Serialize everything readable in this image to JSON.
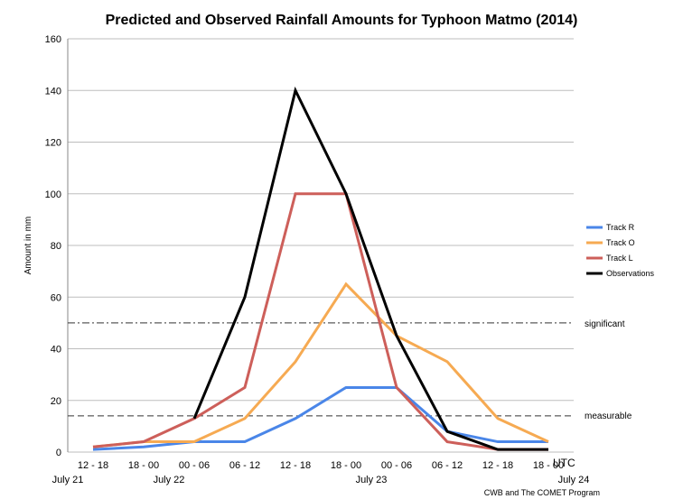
{
  "chart_data": {
    "type": "line",
    "title": "Predicted and Observed Rainfall Amounts for Typhoon Matmo (2014)",
    "ylabel": "Amount in mm",
    "xlabel": "UTC",
    "ylim": [
      0,
      160
    ],
    "yticks": [
      0,
      20,
      40,
      60,
      80,
      100,
      120,
      140,
      160
    ],
    "grid": true,
    "legend_position": "right",
    "categories": [
      "12 - 18",
      "18 - 00",
      "00 - 06",
      "06 - 12",
      "12 - 18",
      "18 - 00",
      "00 - 06",
      "06 - 12",
      "12 - 18",
      "18 - 00"
    ],
    "dates": [
      {
        "label": "July 21",
        "at": -0.5
      },
      {
        "label": "July 22",
        "at": 1.5
      },
      {
        "label": "July 23",
        "at": 5.5
      },
      {
        "label": "July 24",
        "at": 9.5
      }
    ],
    "series": [
      {
        "name": "Track R",
        "color": "#4a86e8",
        "values": [
          1,
          2,
          4,
          4,
          13,
          25,
          25,
          8,
          4,
          4
        ]
      },
      {
        "name": "Track O",
        "color": "#f6aa52",
        "values": [
          2,
          4,
          4,
          13,
          35,
          65,
          45,
          35,
          13,
          4
        ]
      },
      {
        "name": "Track L",
        "color": "#cd5f5a",
        "values": [
          2,
          4,
          13,
          25,
          100,
          100,
          25,
          4,
          1,
          1
        ]
      },
      {
        "name": "Observations",
        "color": "#000000",
        "values": [
          null,
          null,
          13,
          60,
          140,
          100,
          45,
          8,
          1,
          1
        ]
      }
    ],
    "reference_lines": [
      {
        "label": "significant",
        "value": 50,
        "style": "dashdot"
      },
      {
        "label": "measurable",
        "value": 14,
        "style": "dashed"
      }
    ],
    "credit": "CWB and The COMET Program"
  }
}
